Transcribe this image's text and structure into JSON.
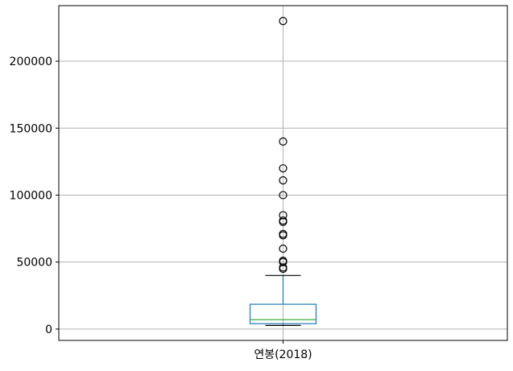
{
  "chart_data": {
    "type": "box",
    "title": "",
    "xlabel": "",
    "ylabel": "",
    "categories": [
      "연봉(2018)"
    ],
    "ylim": [
      -8500,
      241500
    ],
    "yticks": [
      0,
      50000,
      100000,
      150000,
      200000
    ],
    "ytick_labels": [
      "0",
      "50000",
      "100000",
      "150000",
      "200000"
    ],
    "grid": true,
    "box": {
      "whisker_low": 2700,
      "q1": 4000,
      "median": 7000,
      "q3": 18500,
      "whisker_high": 40000
    },
    "outliers": [
      45000,
      46000,
      50000,
      51000,
      60000,
      70000,
      71000,
      80000,
      81000,
      85000,
      100000,
      111000,
      120000,
      140000,
      230000
    ],
    "colors": {
      "box": "#1f77b4",
      "median": "#2ca02c",
      "grid": "#b0b0b0",
      "outlier": "#000000"
    }
  }
}
